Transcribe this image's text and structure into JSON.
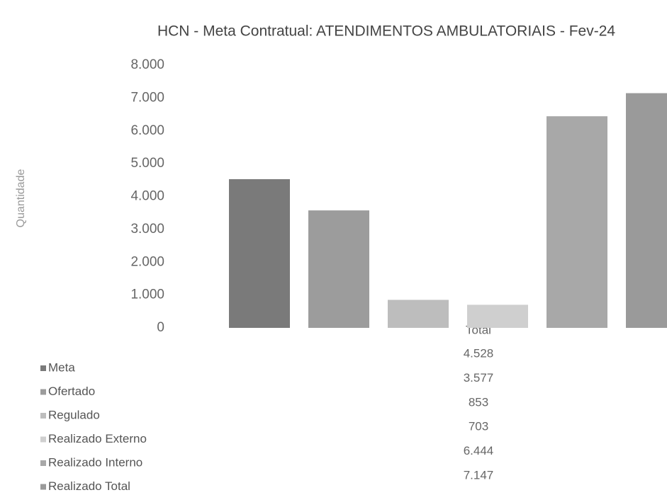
{
  "chart_data": {
    "type": "bar",
    "title": "HCN - Meta Contratual: ATENDIMENTOS AMBULATORIAIS - Fev-24",
    "y_label": "Quantidade",
    "categories": [
      "Total"
    ],
    "series": [
      {
        "name": "Meta",
        "color": "#7a7a7a",
        "values": [
          4528
        ],
        "value_labels": [
          "4.528"
        ]
      },
      {
        "name": "Ofertado",
        "color": "#9c9c9c",
        "values": [
          3577
        ],
        "value_labels": [
          "3.577"
        ]
      },
      {
        "name": "Regulado",
        "color": "#bdbdbd",
        "values": [
          853
        ],
        "value_labels": [
          "853"
        ]
      },
      {
        "name": "Realizado Externo",
        "color": "#cfcfcf",
        "values": [
          703
        ],
        "value_labels": [
          "703"
        ]
      },
      {
        "name": "Realizado Interno",
        "color": "#a8a8a8",
        "values": [
          6444
        ],
        "value_labels": [
          "6.444"
        ]
      },
      {
        "name": "Realizado Total",
        "color": "#9a9a9a",
        "values": [
          7147
        ],
        "value_labels": [
          "7.147"
        ]
      }
    ],
    "ylim": [
      0,
      8000
    ],
    "yticks": [
      0,
      {
        "value": 1000,
        "label": "1.000"
      },
      {
        "value": 2000,
        "label": "2.000"
      },
      {
        "value": 3000,
        "label": "3.000"
      },
      {
        "value": 4000,
        "label": "4.000"
      },
      {
        "value": 5000,
        "label": "5.000"
      },
      {
        "value": 6000,
        "label": "6.000"
      },
      {
        "value": 7000,
        "label": "7.000"
      },
      {
        "value": 8000,
        "label": "8.000"
      }
    ]
  }
}
